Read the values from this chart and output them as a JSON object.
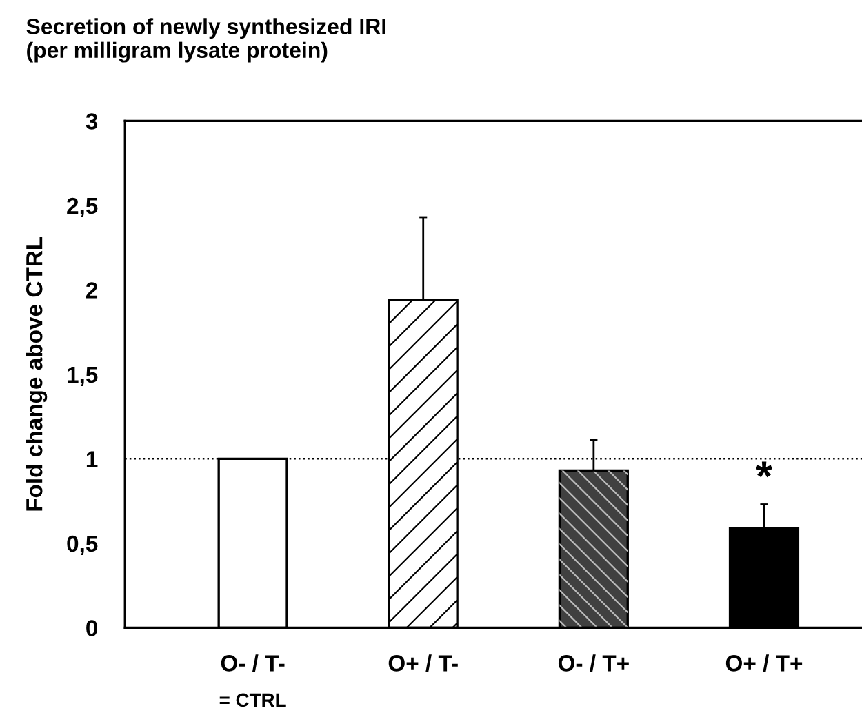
{
  "chart_data": {
    "type": "bar",
    "title": "Secretion of newly synthesized IRI\n(per milligram lysate protein)",
    "ylabel": "Fold change above CTRL",
    "categories": [
      "O- / T-",
      "O+ / T-",
      "O- / T+",
      "O+ / T+"
    ],
    "values": [
      1.0,
      1.94,
      0.93,
      0.59
    ],
    "errors": [
      null,
      0.49,
      0.18,
      0.14
    ],
    "colors": [
      "#ffffff",
      "#ffffff",
      "#404040",
      "#000000"
    ],
    "ylim": [
      0,
      3
    ],
    "yticks": [
      0,
      {
        "value": 0.5,
        "label": "0,5"
      },
      1,
      {
        "value": 1.5,
        "label": "1,5"
      },
      2,
      {
        "value": 2.5,
        "label": "2,5"
      },
      3
    ],
    "ref_lines": [
      {
        "axis": "y",
        "value": 1.0,
        "line_style": "dotted"
      }
    ],
    "annotations": [
      {
        "text": "*",
        "x": "O+ / T+",
        "y": 0.73
      },
      "= CTRL"
    ],
    "grid": false,
    "legend": false
  }
}
